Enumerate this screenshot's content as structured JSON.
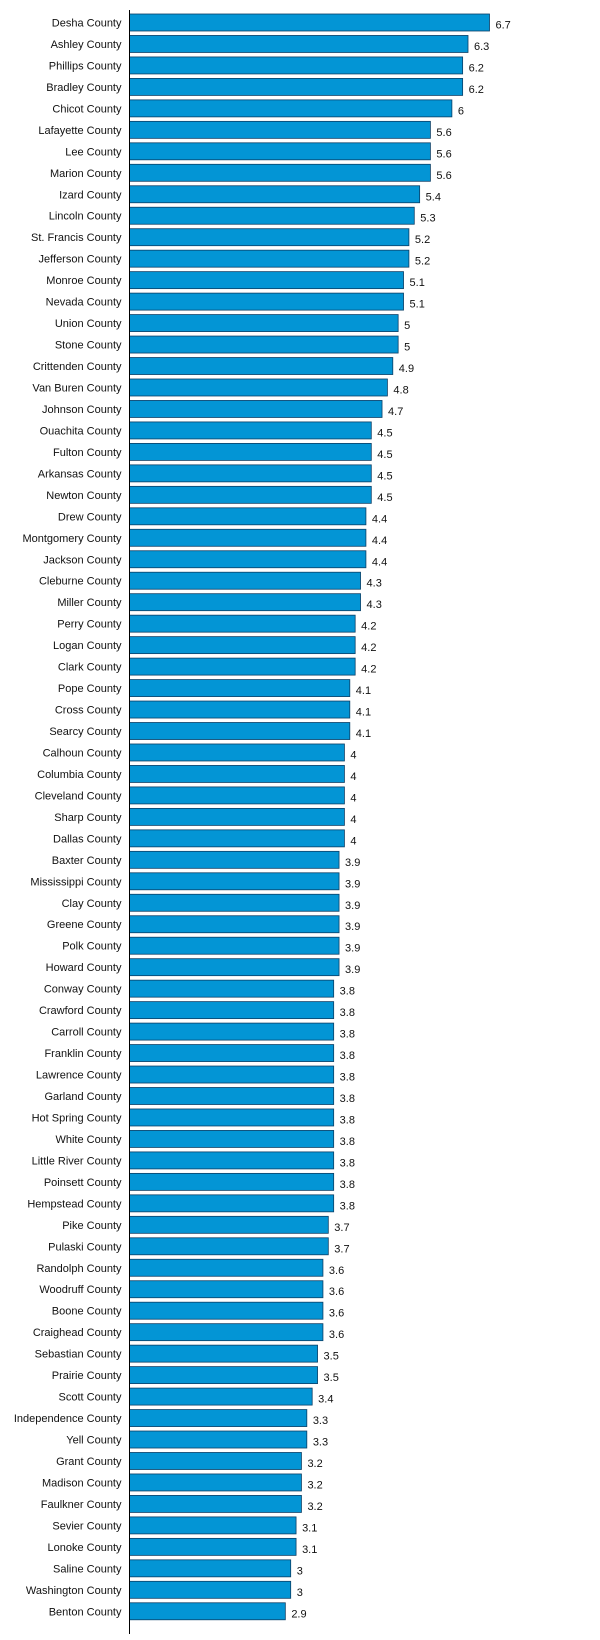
{
  "chart_data": {
    "type": "bar",
    "orientation": "horizontal",
    "bar_color": "#0395D5",
    "title": "",
    "xlabel": "",
    "ylabel": "",
    "xlim": [
      0,
      6.7
    ],
    "grid": false,
    "legend": "none",
    "categories": [
      "Desha County",
      "Ashley County",
      "Phillips County",
      "Bradley County",
      "Chicot County",
      "Lafayette County",
      "Lee County",
      "Marion County",
      "Izard County",
      "Lincoln County",
      "St. Francis County",
      "Jefferson County",
      "Monroe County",
      "Nevada County",
      "Union County",
      "Stone County",
      "Crittenden County",
      "Van Buren County",
      "Johnson County",
      "Ouachita County",
      "Fulton County",
      "Arkansas County",
      "Newton County",
      "Drew County",
      "Montgomery County",
      "Jackson County",
      "Cleburne County",
      "Miller County",
      "Perry County",
      "Logan County",
      "Clark County",
      "Pope County",
      "Cross County",
      "Searcy County",
      "Calhoun County",
      "Columbia County",
      "Cleveland County",
      "Sharp County",
      "Dallas County",
      "Baxter County",
      "Mississippi County",
      "Clay County",
      "Greene County",
      "Polk County",
      "Howard County",
      "Conway County",
      "Crawford County",
      "Carroll County",
      "Franklin County",
      "Lawrence County",
      "Garland County",
      "Hot Spring County",
      "White County",
      "Little River County",
      "Poinsett County",
      "Hempstead County",
      "Pike County",
      "Pulaski County",
      "Randolph County",
      "Woodruff County",
      "Boone County",
      "Craighead County",
      "Sebastian County",
      "Prairie County",
      "Scott County",
      "Independence County",
      "Yell County",
      "Grant County",
      "Madison County",
      "Faulkner County",
      "Sevier County",
      "Lonoke County",
      "Saline County",
      "Washington County",
      "Benton County"
    ],
    "values": [
      6.7,
      6.3,
      6.2,
      6.2,
      6,
      5.6,
      5.6,
      5.6,
      5.4,
      5.3,
      5.2,
      5.2,
      5.1,
      5.1,
      5,
      5,
      4.9,
      4.8,
      4.7,
      4.5,
      4.5,
      4.5,
      4.5,
      4.4,
      4.4,
      4.4,
      4.3,
      4.3,
      4.2,
      4.2,
      4.2,
      4.1,
      4.1,
      4.1,
      4,
      4,
      4,
      4,
      4,
      3.9,
      3.9,
      3.9,
      3.9,
      3.9,
      3.9,
      3.8,
      3.8,
      3.8,
      3.8,
      3.8,
      3.8,
      3.8,
      3.8,
      3.8,
      3.8,
      3.8,
      3.7,
      3.7,
      3.6,
      3.6,
      3.6,
      3.6,
      3.5,
      3.5,
      3.4,
      3.3,
      3.3,
      3.2,
      3.2,
      3.2,
      3.1,
      3.1,
      3,
      3,
      2.9
    ]
  }
}
